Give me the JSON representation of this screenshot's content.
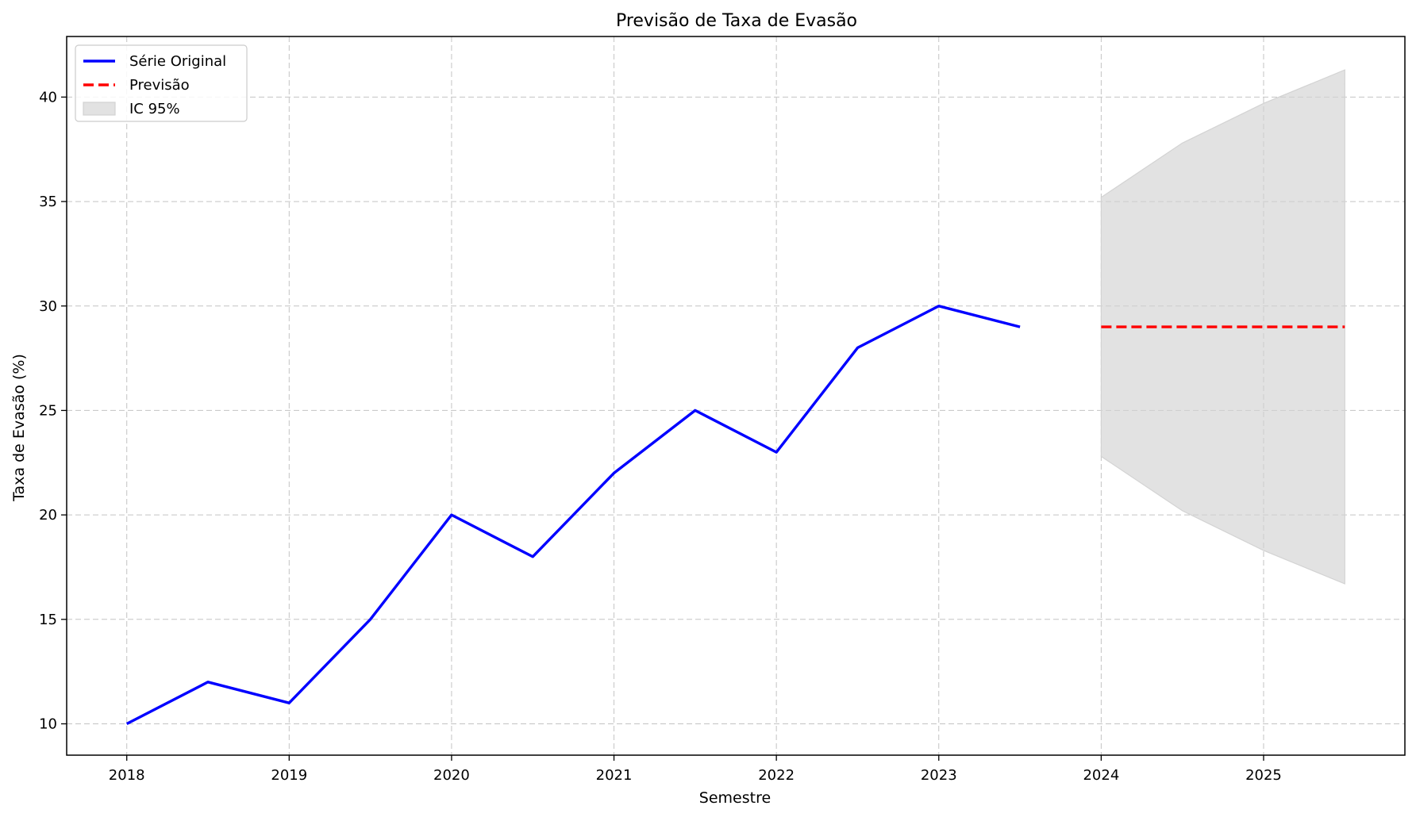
{
  "chart_data": {
    "type": "line",
    "title": "Previsão de Taxa de Evasão",
    "xlabel": "Semestre",
    "ylabel": "Taxa de Evasão (%)",
    "xlim": [
      2017.63,
      2025.87
    ],
    "ylim": [
      8.5,
      42.9
    ],
    "xticks": [
      2018,
      2019,
      2020,
      2021,
      2022,
      2023,
      2024,
      2025
    ],
    "yticks": [
      10,
      15,
      20,
      25,
      30,
      35,
      40
    ],
    "grid": true,
    "legend_position": "upper-left",
    "series": [
      {
        "name": "Série Original",
        "kind": "line",
        "color": "#0000ff",
        "style": "solid",
        "x": [
          2018.0,
          2018.5,
          2019.0,
          2019.5,
          2020.0,
          2020.5,
          2021.0,
          2021.5,
          2022.0,
          2022.5,
          2023.0,
          2023.5
        ],
        "y": [
          10,
          12,
          11,
          15,
          20,
          18,
          22,
          25,
          23,
          28,
          30,
          29
        ]
      },
      {
        "name": "Previsão",
        "kind": "line",
        "color": "#ff0000",
        "style": "dashed",
        "x": [
          2024.0,
          2024.5,
          2025.0,
          2025.5
        ],
        "y": [
          29,
          29,
          29,
          29
        ]
      },
      {
        "name": "IC 95%",
        "kind": "band",
        "color": "#d3d3d3",
        "x": [
          2024.0,
          2024.5,
          2025.0,
          2025.5
        ],
        "lower": [
          22.8,
          20.2,
          18.3,
          16.7
        ],
        "upper": [
          35.2,
          37.8,
          39.7,
          41.3
        ]
      }
    ]
  }
}
